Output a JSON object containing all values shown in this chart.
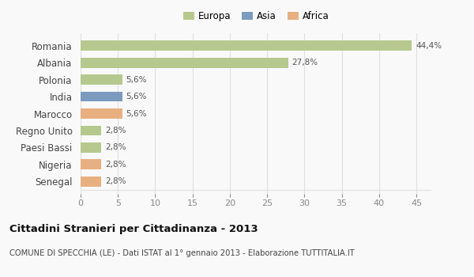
{
  "categories": [
    "Romania",
    "Albania",
    "Polonia",
    "India",
    "Marocco",
    "Regno Unito",
    "Paesi Bassi",
    "Nigeria",
    "Senegal"
  ],
  "values": [
    44.4,
    27.8,
    5.6,
    5.6,
    5.6,
    2.8,
    2.8,
    2.8,
    2.8
  ],
  "labels": [
    "44,4%",
    "27,8%",
    "5,6%",
    "5,6%",
    "5,6%",
    "2,8%",
    "2,8%",
    "2,8%",
    "2,8%"
  ],
  "colors": [
    "#b5c98e",
    "#b5c98e",
    "#b5c98e",
    "#7b9bbf",
    "#e8b080",
    "#b5c98e",
    "#b5c98e",
    "#e8b080",
    "#e8b080"
  ],
  "legend_labels": [
    "Europa",
    "Asia",
    "Africa"
  ],
  "legend_colors": [
    "#b5c98e",
    "#7b9bbf",
    "#e8b080"
  ],
  "title_main": "Cittadini Stranieri per Cittadinanza - 2013",
  "title_sub": "COMUNE DI SPECCHIA (LE) - Dati ISTAT al 1° gennaio 2013 - Elaborazione TUTTITALIA.IT",
  "xlim": [
    0,
    47
  ],
  "xticks": [
    0,
    5,
    10,
    15,
    20,
    25,
    30,
    35,
    40,
    45
  ],
  "background_color": "#f9f9f9",
  "grid_color": "#e0e0e0",
  "bar_height": 0.6
}
